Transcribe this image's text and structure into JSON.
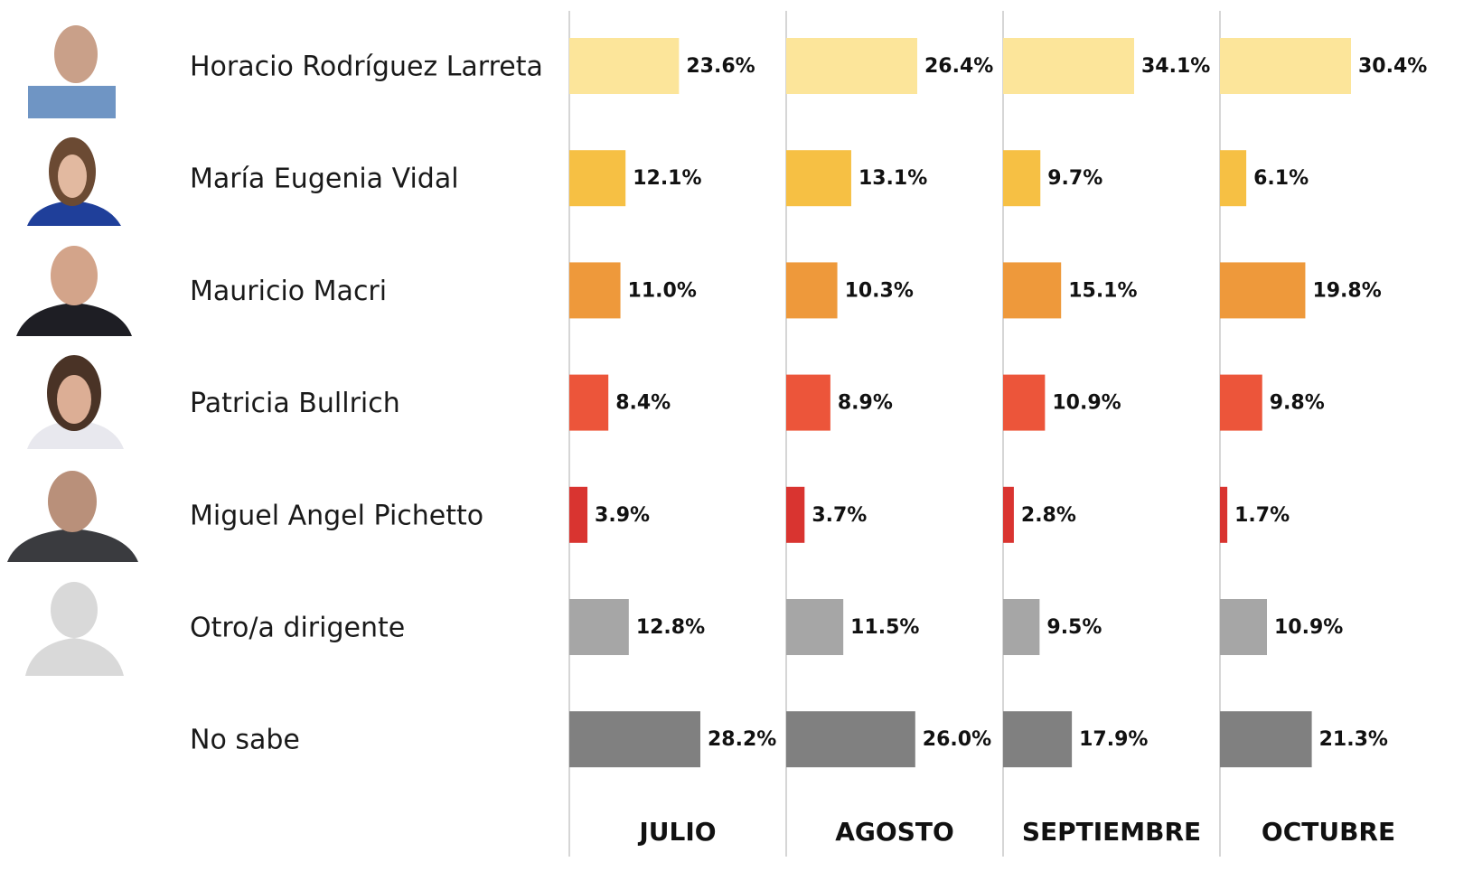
{
  "chart_data": {
    "type": "bar",
    "orientation": "horizontal",
    "categories": [
      "Horacio Rodríguez Larreta",
      "María Eugenia Vidal",
      "Mauricio Macri",
      "Patricia Bullrich",
      "Miguel Angel Pichetto",
      "Otro/a dirigente",
      "No sabe"
    ],
    "colors": [
      "#fce59a",
      "#f6c044",
      "#ee993b",
      "#ec553a",
      "#d93430",
      "#a6a6a6",
      "#808080"
    ],
    "series": [
      {
        "name": "JULIO",
        "values": [
          23.6,
          12.1,
          11.0,
          8.4,
          3.9,
          12.8,
          28.2
        ],
        "value_labels": [
          "23.6%",
          "12.1%",
          "11.0%",
          "8.4%",
          "3.9%",
          "12.8%",
          "28.2%"
        ]
      },
      {
        "name": "AGOSTO",
        "values": [
          26.4,
          13.1,
          10.3,
          8.9,
          3.7,
          11.5,
          26.0
        ],
        "value_labels": [
          "26.4%",
          "13.1%",
          "10.3%",
          "8.9%",
          "3.7%",
          "11.5%",
          "26.0%"
        ]
      },
      {
        "name": "SEPTIEMBRE",
        "values": [
          34.1,
          9.7,
          15.1,
          10.9,
          2.8,
          9.5,
          17.9
        ],
        "value_labels": [
          "34.1%",
          "9.7%",
          "15.1%",
          "10.9%",
          "2.8%",
          "9.5%",
          "17.9%"
        ]
      },
      {
        "name": "OCTUBRE",
        "values": [
          30.4,
          6.1,
          19.8,
          9.8,
          1.7,
          10.9,
          21.3
        ],
        "value_labels": [
          "30.4%",
          "6.1%",
          "19.8%",
          "9.8%",
          "1.7%",
          "10.9%",
          "21.3%"
        ]
      }
    ]
  }
}
